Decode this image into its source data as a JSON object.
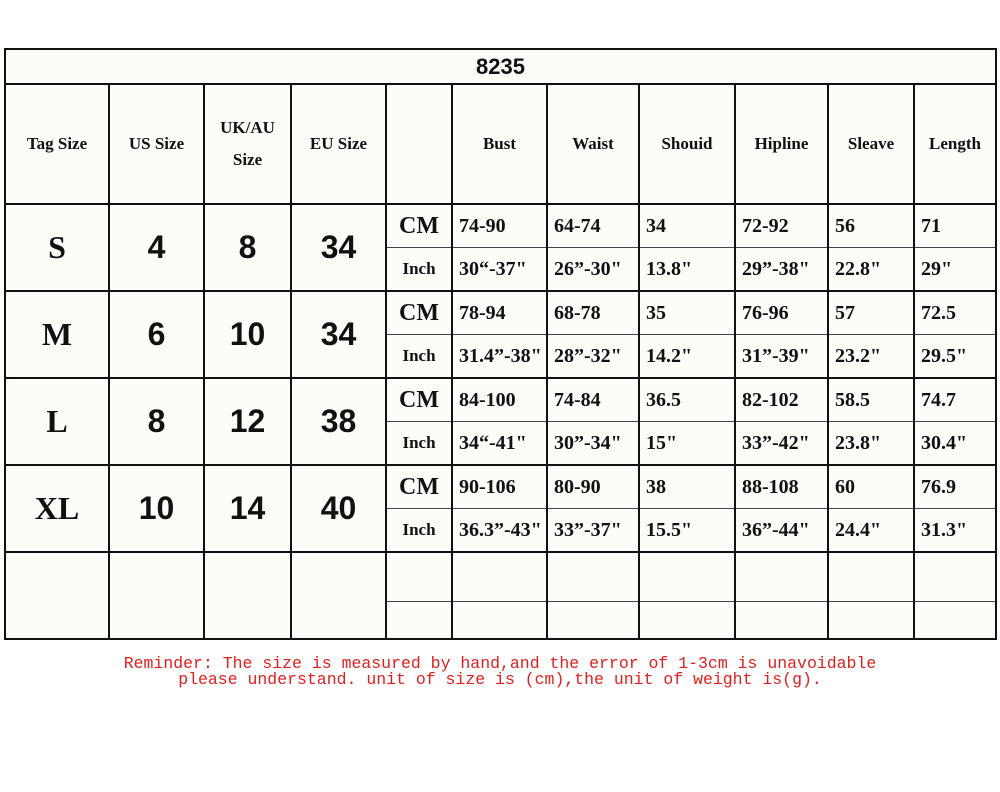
{
  "title": "8235",
  "headers": [
    "Tag Size",
    "US Size",
    "UK/AU Size",
    "EU Size",
    "",
    "Bust",
    "Waist",
    "Shouid",
    "Hipline",
    "Sleave",
    "Length"
  ],
  "rows": [
    {
      "tag": "S",
      "us": "4",
      "uk": "8",
      "eu": "34",
      "cm": {
        "unit": "CM",
        "values": [
          "74-90",
          "64-74",
          "34",
          "72-92",
          "56",
          "71"
        ]
      },
      "inch": {
        "unit": "Inch",
        "values": [
          "30“-37\"",
          "26”-30\"",
          "13.8\"",
          "29”-38\"",
          "22.8\"",
          "29\""
        ]
      }
    },
    {
      "tag": "M",
      "us": "6",
      "uk": "10",
      "eu": "34",
      "cm": {
        "unit": "CM",
        "values": [
          "78-94",
          "68-78",
          "35",
          "76-96",
          "57",
          "72.5"
        ]
      },
      "inch": {
        "unit": "Inch",
        "values": [
          "31.4”-38\"",
          "28”-32\"",
          "14.2\"",
          "31”-39\"",
          "23.2\"",
          "29.5\""
        ]
      }
    },
    {
      "tag": "L",
      "us": "8",
      "uk": "12",
      "eu": "38",
      "cm": {
        "unit": "CM",
        "values": [
          "84-100",
          "74-84",
          "36.5",
          "82-102",
          "58.5",
          "74.7"
        ]
      },
      "inch": {
        "unit": "Inch",
        "values": [
          "34“-41\"",
          "30”-34\"",
          "15\"",
          "33”-42\"",
          "23.8\"",
          "30.4\""
        ]
      }
    },
    {
      "tag": "XL",
      "us": "10",
      "uk": "14",
      "eu": "40",
      "cm": {
        "unit": "CM",
        "values": [
          "90-106",
          "80-90",
          "38",
          "88-108",
          "60",
          "76.9"
        ]
      },
      "inch": {
        "unit": "Inch",
        "values": [
          "36.3”-43\"",
          "33”-37\"",
          "15.5\"",
          "36”-44\"",
          "24.4\"",
          "31.3\""
        ]
      }
    }
  ],
  "reminder": {
    "line1": "Reminder: The size is measured by hand,and the error of 1-3cm is unavoidable",
    "line2": "please understand. unit of size is (cm),the unit of weight is(g)."
  }
}
